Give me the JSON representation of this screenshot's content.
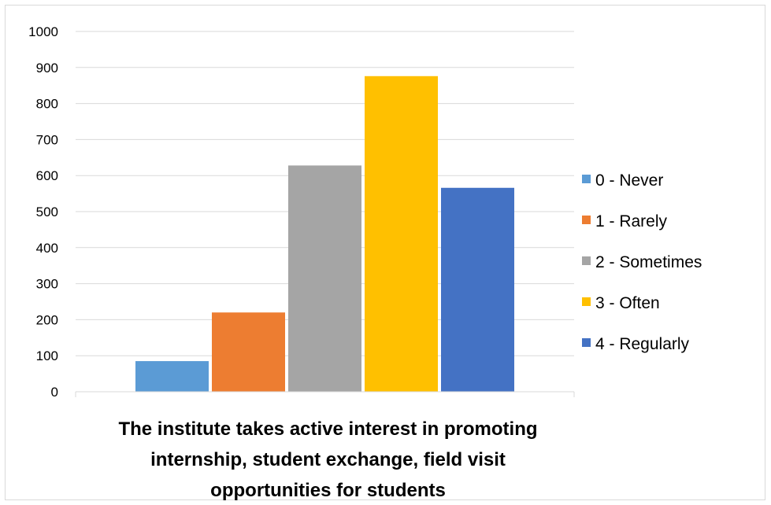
{
  "chart_data": {
    "type": "bar",
    "categories": [
      "The institute takes active interest in promoting internship, student exchange, field visit opportunities for students"
    ],
    "category_label_lines": [
      "The institute takes active interest in promoting",
      "internship, student exchange, field visit",
      "opportunities for students"
    ],
    "series": [
      {
        "name": "0 - Never",
        "values": [
          85
        ],
        "color": "#5b9bd5"
      },
      {
        "name": "1 - Rarely",
        "values": [
          220
        ],
        "color": "#ed7d31"
      },
      {
        "name": "2 - Sometimes",
        "values": [
          628
        ],
        "color": "#a5a5a5"
      },
      {
        "name": "3 - Often",
        "values": [
          876
        ],
        "color": "#ffc000"
      },
      {
        "name": "4 - Regularly",
        "values": [
          566
        ],
        "color": "#4472c4"
      }
    ],
    "ylim": [
      0,
      1000
    ],
    "yticks": [
      "0",
      "100",
      "200",
      "300",
      "400",
      "500",
      "600",
      "700",
      "800",
      "900",
      "1000"
    ],
    "grid": true,
    "legend_position": "right",
    "title": "",
    "xlabel": "",
    "ylabel": ""
  }
}
